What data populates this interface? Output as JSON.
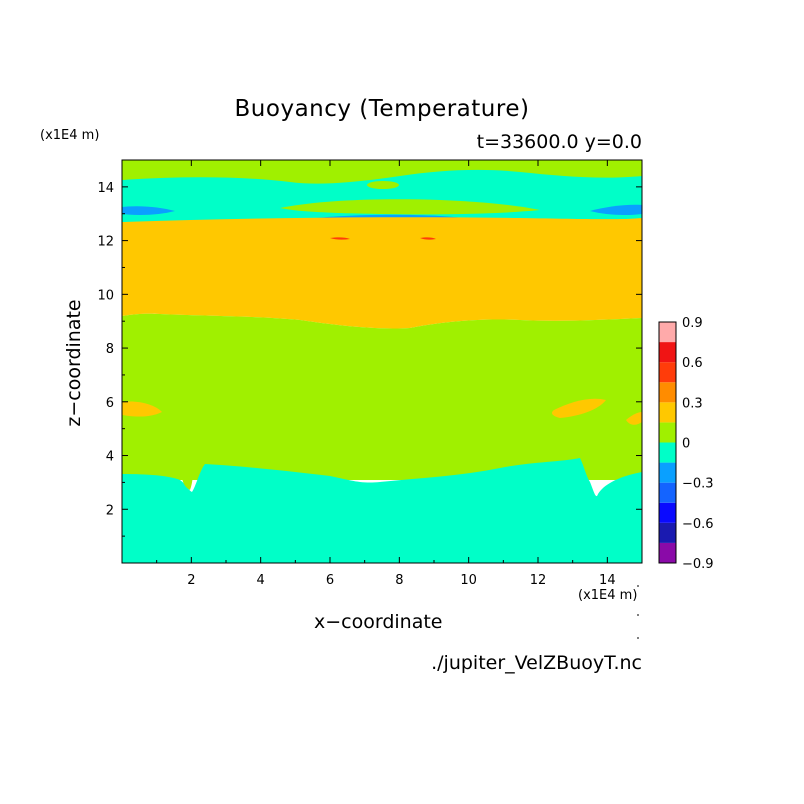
{
  "chart_data": {
    "type": "heatmap",
    "title": "Buoyancy (Temperature)",
    "time_label": "t=33600.0 y=0.0",
    "xlabel": "x−coordinate",
    "ylabel": "z−coordinate",
    "x_unit_label": "(x1E4 m)",
    "y_unit_label": "(x1E4 m)",
    "source": "./jupiter_VelZBuoyT.nc",
    "xlim": [
      0,
      15
    ],
    "ylim": [
      0,
      15
    ],
    "xticks": [
      2,
      4,
      6,
      8,
      10,
      12,
      14
    ],
    "yticks": [
      2,
      4,
      6,
      8,
      10,
      12,
      14
    ],
    "colorbar": {
      "levels": [
        -0.9,
        -0.75,
        -0.6,
        -0.45,
        -0.3,
        -0.15,
        0,
        0.15,
        0.3,
        0.45,
        0.6,
        0.75,
        0.9
      ],
      "tick_labels": [
        "0.9",
        "0.6",
        "0.3",
        "0",
        "−0.3",
        "−0.6",
        "−0.9"
      ],
      "tick_values": [
        0.9,
        0.6,
        0.3,
        0,
        -0.3,
        -0.6,
        -0.9
      ],
      "colors": [
        "#8a0aa8",
        "#1a1ab0",
        "#0a0aff",
        "#1464ff",
        "#0aa0ff",
        "#00ffc8",
        "#a0f000",
        "#ffc800",
        "#ff8c00",
        "#ff3c0a",
        "#f01414",
        "#ffaaaa"
      ]
    },
    "regions": [
      {
        "name": "lower layer",
        "z_range": [
          0,
          3.3
        ],
        "value": -0.1
      },
      {
        "name": "middle layer",
        "z_range": [
          3.3,
          9.0
        ],
        "value": 0.1
      },
      {
        "name": "warm band",
        "z_range": [
          9.0,
          12.7
        ],
        "value": 0.2
      },
      {
        "name": "cool band near top",
        "z_range": [
          12.4,
          13.6
        ],
        "value": -0.2
      },
      {
        "name": "upper layer",
        "z_range": [
          13.6,
          15
        ],
        "value": 0.05
      }
    ]
  }
}
